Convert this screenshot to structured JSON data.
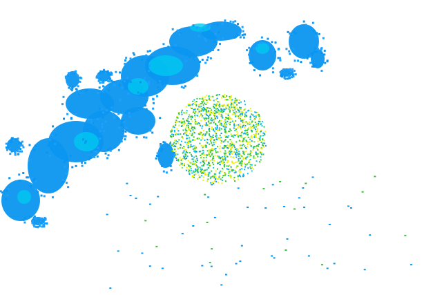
{
  "radar": {
    "colors": {
      "background": "#ffffff",
      "light": "#0a96f0",
      "light_alt": "#1ea0ff",
      "moderate": "#00c8f0",
      "heavy_green": "#32c832",
      "heavy_yellow": "#f0f000"
    }
  }
}
